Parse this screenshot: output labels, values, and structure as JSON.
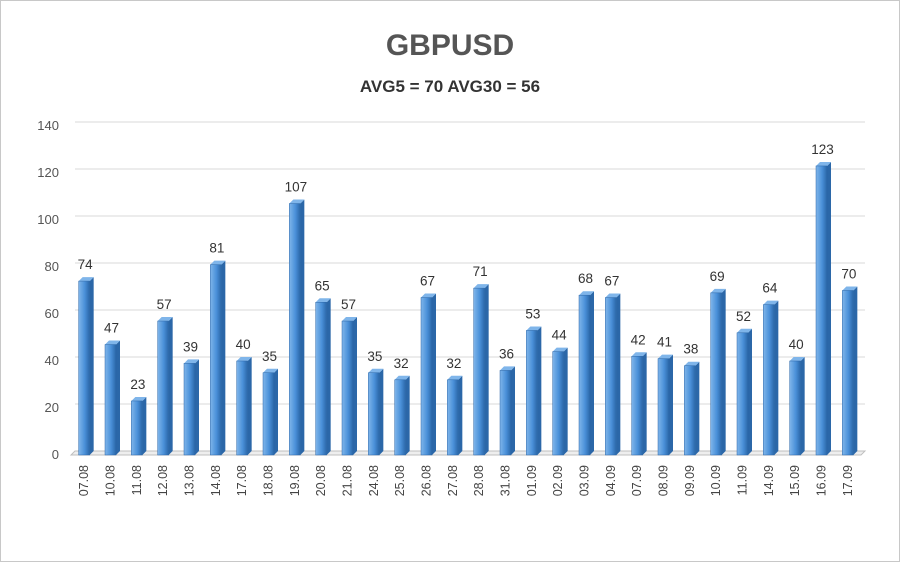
{
  "chart_data": {
    "type": "bar",
    "title": "GBPUSD",
    "subtitle": "AVG5 = 70 AVG30 = 56",
    "categories": [
      "07.08",
      "10.08",
      "11.08",
      "12.08",
      "13.08",
      "14.08",
      "17.08",
      "18.08",
      "19.08",
      "20.08",
      "21.08",
      "24.08",
      "25.08",
      "26.08",
      "27.08",
      "28.08",
      "31.08",
      "01.09",
      "02.09",
      "03.09",
      "04.09",
      "07.09",
      "08.09",
      "09.09",
      "10.09",
      "11.09",
      "14.09",
      "15.09",
      "16.09",
      "17.09"
    ],
    "values": [
      74,
      47,
      23,
      57,
      39,
      81,
      40,
      35,
      107,
      65,
      57,
      35,
      32,
      67,
      32,
      71,
      36,
      53,
      44,
      68,
      67,
      42,
      41,
      38,
      69,
      52,
      64,
      40,
      123,
      70
    ],
    "yticks": [
      0,
      20,
      40,
      60,
      80,
      100,
      120,
      140
    ],
    "ylim": [
      0,
      140
    ],
    "xlabel": "",
    "ylabel": "",
    "grid": true,
    "legend": "none",
    "colors": {
      "bar_main": "#4a90d9",
      "bar_side": "#2b67a8",
      "bar_light": "#7fb5ea",
      "grid": "#d9d9d9",
      "axis": "#bfbfbf"
    }
  }
}
